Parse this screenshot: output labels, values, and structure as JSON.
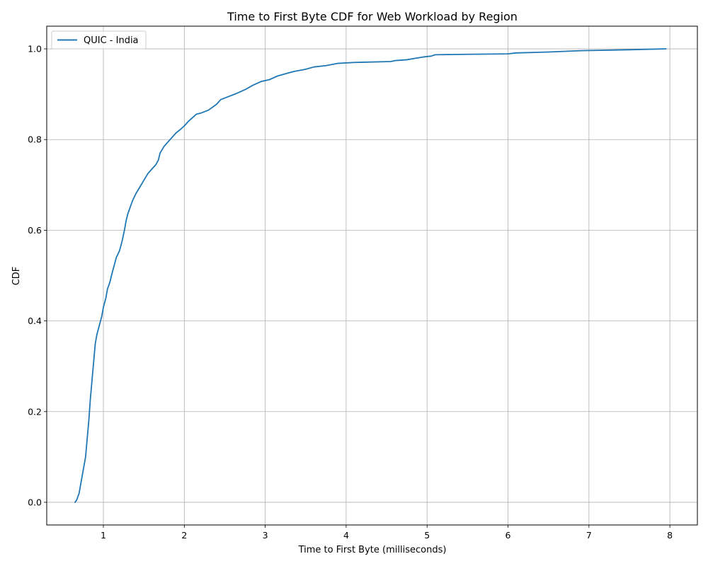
{
  "chart_data": {
    "type": "line",
    "title": "Time to First Byte CDF for Web Workload by Region",
    "xlabel": "Time to First Byte (milliseconds)",
    "ylabel": "CDF",
    "xlim": [
      0.3,
      8.34
    ],
    "ylim": [
      -0.05,
      1.05
    ],
    "xticks": [
      1,
      2,
      3,
      4,
      5,
      6,
      7,
      8
    ],
    "xtick_labels": [
      "1",
      "2",
      "3",
      "4",
      "5",
      "6",
      "7",
      "8"
    ],
    "yticks": [
      0.0,
      0.2,
      0.4,
      0.6,
      0.8,
      1.0
    ],
    "ytick_labels": [
      "0.0",
      "0.2",
      "0.4",
      "0.6",
      "0.8",
      "1.0"
    ],
    "grid": true,
    "legend_position": "top-left",
    "series": [
      {
        "name": "QUIC - India",
        "color": "#1f77b4",
        "x": [
          0.65,
          0.67,
          0.7,
          0.72,
          0.75,
          0.78,
          0.8,
          0.82,
          0.84,
          0.86,
          0.88,
          0.9,
          0.92,
          0.95,
          0.98,
          1.0,
          1.03,
          1.05,
          1.08,
          1.1,
          1.13,
          1.16,
          1.2,
          1.23,
          1.26,
          1.28,
          1.3,
          1.33,
          1.36,
          1.4,
          1.45,
          1.5,
          1.55,
          1.6,
          1.65,
          1.68,
          1.7,
          1.75,
          1.8,
          1.85,
          1.9,
          1.95,
          2.0,
          2.05,
          2.1,
          2.15,
          2.2,
          2.3,
          2.4,
          2.45,
          2.55,
          2.65,
          2.75,
          2.85,
          2.95,
          3.05,
          3.15,
          3.25,
          3.35,
          3.5,
          3.6,
          3.75,
          3.9,
          4.1,
          4.55,
          4.6,
          4.75,
          4.85,
          4.95,
          5.05,
          5.1,
          5.5,
          6.0,
          6.1,
          6.5,
          6.9,
          7.5,
          7.95
        ],
        "y": [
          0.0,
          0.005,
          0.02,
          0.04,
          0.07,
          0.1,
          0.14,
          0.18,
          0.23,
          0.27,
          0.31,
          0.35,
          0.37,
          0.39,
          0.41,
          0.43,
          0.45,
          0.47,
          0.485,
          0.5,
          0.52,
          0.54,
          0.555,
          0.575,
          0.6,
          0.62,
          0.635,
          0.65,
          0.665,
          0.68,
          0.695,
          0.71,
          0.725,
          0.735,
          0.745,
          0.755,
          0.77,
          0.785,
          0.795,
          0.805,
          0.815,
          0.822,
          0.83,
          0.84,
          0.848,
          0.856,
          0.858,
          0.865,
          0.878,
          0.888,
          0.895,
          0.902,
          0.91,
          0.92,
          0.928,
          0.932,
          0.94,
          0.945,
          0.95,
          0.955,
          0.96,
          0.963,
          0.968,
          0.97,
          0.972,
          0.974,
          0.976,
          0.979,
          0.982,
          0.984,
          0.987,
          0.988,
          0.989,
          0.991,
          0.993,
          0.996,
          0.998,
          1.0
        ]
      }
    ]
  }
}
